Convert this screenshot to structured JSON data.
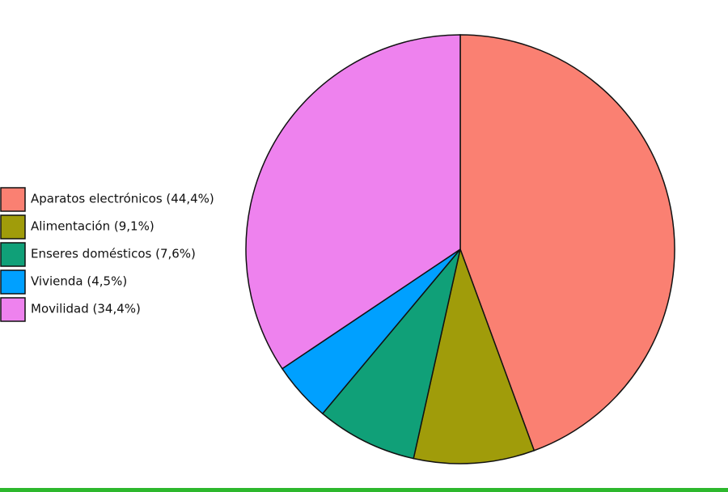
{
  "chart_data": {
    "type": "pie",
    "categories": [
      "Aparatos electrónicos (44,4%)",
      "Alimentación (9,1%)",
      "Enseres domésticos (7,6%)",
      "Vivienda (4,5%)",
      "Movilidad (34,4%)"
    ],
    "values": [
      44.4,
      9.1,
      7.6,
      4.5,
      34.4
    ],
    "colors": [
      "#fa8072",
      "#a09c0a",
      "#10a078",
      "#00a0ff",
      "#ee82ee"
    ],
    "legend": "left"
  }
}
